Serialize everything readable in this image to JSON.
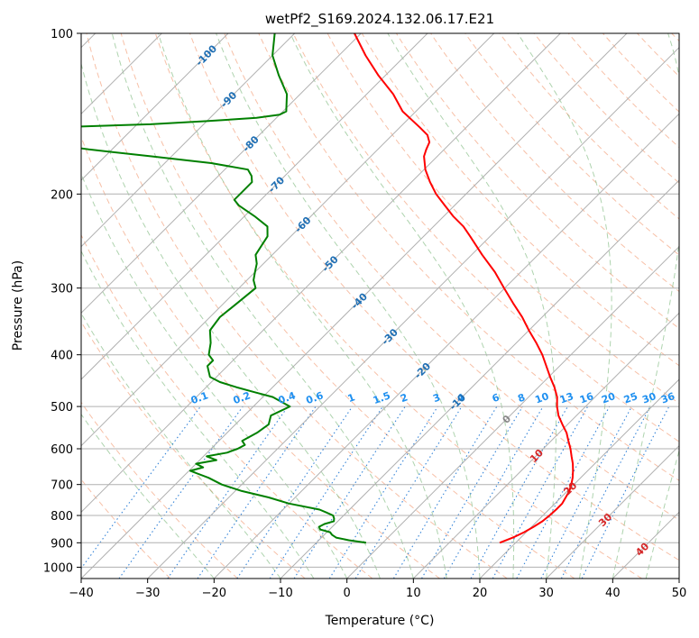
{
  "chart_data": {
    "type": "line",
    "title": "wetPf2_S169.2024.132.06.17.E21",
    "xlabel": "Temperature (°C)",
    "ylabel": "Pressure (hPa)",
    "xlim": [
      -40,
      50
    ],
    "ylim": [
      1050,
      100
    ],
    "y_scale": "log",
    "grid": true,
    "x_ticks": [
      -40,
      -30,
      -20,
      -10,
      0,
      10,
      20,
      30,
      40,
      50
    ],
    "y_ticks": [
      100,
      200,
      300,
      400,
      500,
      600,
      700,
      800,
      900,
      1000
    ],
    "series": [
      {
        "color": "#ff0000",
        "p": [
          900,
          880,
          860,
          840,
          820,
          800,
          780,
          760,
          740,
          720,
          700,
          680,
          660,
          640,
          620,
          600,
          580,
          560,
          540,
          520,
          500,
          480,
          460,
          440,
          420,
          400,
          380,
          360,
          340,
          320,
          300,
          280,
          260,
          240,
          230,
          220,
          210,
          200,
          190,
          180,
          170,
          165,
          160,
          155,
          150,
          140,
          130,
          120,
          110,
          100
        ],
        "t": [
          17.6,
          18.8,
          19.7,
          20.3,
          20.8,
          21.0,
          21.1,
          21.1,
          20.7,
          20.3,
          19.6,
          18.8,
          17.8,
          16.7,
          15.4,
          14.1,
          12.6,
          11.1,
          9.2,
          7.3,
          5.7,
          4.3,
          2.4,
          0.2,
          -2.0,
          -4.3,
          -7.0,
          -10.0,
          -13.0,
          -16.5,
          -20.1,
          -23.9,
          -28.4,
          -33.0,
          -35.5,
          -38.6,
          -41.5,
          -44.5,
          -47.2,
          -49.8,
          -52.0,
          -52.7,
          -53.3,
          -54.7,
          -57.0,
          -62.0,
          -66.0,
          -71.0,
          -76.0,
          -81.0
        ]
      },
      {
        "color": "#008000",
        "p": [
          900,
          890,
          880,
          870,
          860,
          850,
          840,
          830,
          820,
          810,
          800,
          790,
          780,
          760,
          740,
          720,
          700,
          680,
          660,
          650,
          640,
          630,
          620,
          610,
          600,
          590,
          580,
          560,
          540,
          520,
          500,
          480,
          470,
          460,
          450,
          440,
          420,
          410,
          400,
          380,
          360,
          340,
          320,
          300,
          290,
          280,
          270,
          260,
          250,
          240,
          230,
          220,
          210,
          205,
          200,
          195,
          190,
          185,
          180,
          175,
          170,
          165,
          160,
          155,
          150,
          148,
          146,
          144,
          142,
          140,
          138,
          130,
          120,
          110,
          100
        ],
        "t": [
          -2.5,
          -5.5,
          -7.8,
          -8.8,
          -9.5,
          -11.4,
          -12.0,
          -11.6,
          -10.6,
          -11.0,
          -11.6,
          -13.0,
          -14.5,
          -20.0,
          -24.0,
          -29.0,
          -33.0,
          -36.0,
          -39.8,
          -38.4,
          -40.0,
          -37.5,
          -39.5,
          -37.0,
          -36.0,
          -35.5,
          -36.5,
          -35.5,
          -35.0,
          -36.0,
          -34.5,
          -38.5,
          -42.0,
          -45.5,
          -48.7,
          -51.0,
          -53.0,
          -53.0,
          -54.5,
          -56.0,
          -58.0,
          -58.5,
          -58.0,
          -57.5,
          -59.0,
          -60.0,
          -61.0,
          -62.5,
          -63.0,
          -63.5,
          -65.0,
          -68.5,
          -72.5,
          -74.0,
          -74.0,
          -74.0,
          -74.0,
          -75.0,
          -76.5,
          -83.0,
          -93.0,
          -103.5,
          -112.0,
          -114.5,
          -112.0,
          -98.0,
          -90.0,
          -83.0,
          -80.0,
          -79.5,
          -80.0,
          -82.0,
          -86.0,
          -90.0,
          -93.0
        ]
      }
    ],
    "dry_adiabats": [
      -30,
      -20,
      -10,
      0,
      10,
      20,
      30,
      40,
      50,
      60,
      70,
      80,
      90,
      100,
      110,
      120,
      130,
      140,
      150,
      160,
      170,
      180,
      190,
      200,
      210,
      220,
      230,
      240
    ],
    "moist_adiabats": [
      -20,
      -10,
      -5,
      0,
      5,
      10,
      15,
      20,
      25,
      30,
      35,
      40,
      45
    ],
    "mixing_ratio_lines": [
      0.1,
      0.2,
      0.4,
      0.6,
      1,
      1.5,
      2,
      3,
      4,
      6,
      8,
      10,
      13,
      16,
      20,
      25,
      30,
      36
    ],
    "mixing_ratio_labels": [
      "0.1",
      "0.2",
      "0.4",
      "0.6",
      "1",
      "1.5",
      "2",
      "3",
      "4",
      "6",
      "8",
      "10",
      "13",
      "16",
      "20",
      "25",
      "30",
      "36"
    ],
    "isotherm_labels": [
      {
        "t": -100,
        "p": 110,
        "text": "-100"
      },
      {
        "t": -90,
        "p": 133,
        "text": "-90"
      },
      {
        "t": -80,
        "p": 161,
        "text": "-80"
      },
      {
        "t": -70,
        "p": 192,
        "text": "-70"
      },
      {
        "t": -60,
        "p": 228,
        "text": "-60"
      },
      {
        "t": -50,
        "p": 270,
        "text": "-50"
      },
      {
        "t": -40,
        "p": 317,
        "text": "-40"
      },
      {
        "t": -30,
        "p": 370,
        "text": "-30"
      },
      {
        "t": -20,
        "p": 428,
        "text": "-20"
      },
      {
        "t": -10,
        "p": 490,
        "text": "-10"
      }
    ],
    "warm_isotherm_labels": [
      {
        "t": 0,
        "p": 528,
        "text": "0",
        "color": "#888888"
      },
      {
        "t": 10,
        "p": 618,
        "text": "10",
        "color": "#d62728"
      },
      {
        "t": 20,
        "p": 712,
        "text": "20",
        "color": "#d62728"
      },
      {
        "t": 30,
        "p": 815,
        "text": "30",
        "color": "#d62728"
      },
      {
        "t": 40,
        "p": 925,
        "text": "40",
        "color": "#d62728"
      }
    ]
  }
}
